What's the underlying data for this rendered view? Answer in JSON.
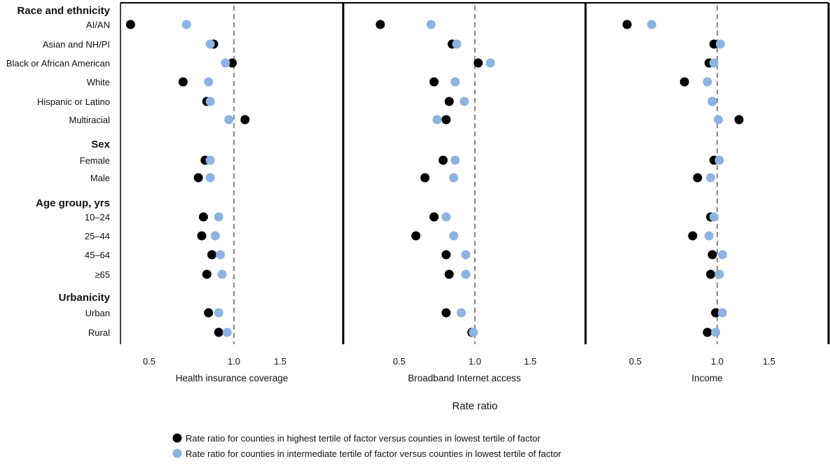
{
  "chart_data": {
    "type": "scatter",
    "xlabel": "Rate ratio",
    "reference_line": 1.0,
    "tick_labels": [
      "0.5",
      "1.0",
      "1.5"
    ],
    "ticks": [
      0.5,
      1.0,
      1.5
    ],
    "groups": [
      {
        "header": "Race and ethnicity",
        "rows": [
          "AI/AN",
          "Asian and NH/PI",
          "Black or African American",
          "White",
          "Hispanic or Latino",
          "Multiracial"
        ]
      },
      {
        "header": "Sex",
        "rows": [
          "Female",
          "Male"
        ]
      },
      {
        "header": "Age group, yrs",
        "rows": [
          "10‒24",
          "25‒44",
          "45‒64",
          "≥65"
        ]
      },
      {
        "header": "Urbanicity",
        "rows": [
          "Urban",
          "Rural"
        ]
      }
    ],
    "legend": [
      {
        "name": "Rate ratio for counties in highest tertile of factor versus counties in lowest tertile of factor",
        "color": "#000000"
      },
      {
        "name": "Rate ratio for counties in intermediate tertile of factor versus counties in lowest tertile of factor",
        "color": "#8db3e2"
      }
    ],
    "panels": [
      {
        "title": "Health insurance coverage",
        "highest": [
          0.39,
          0.88,
          0.99,
          0.7,
          0.84,
          1.12,
          0.83,
          0.79,
          0.82,
          0.81,
          0.87,
          0.84,
          0.85,
          0.91
        ],
        "intermediate": [
          0.72,
          0.86,
          0.95,
          0.85,
          0.86,
          0.97,
          0.86,
          0.86,
          0.91,
          0.89,
          0.92,
          0.93,
          0.91,
          0.96
        ]
      },
      {
        "title": "Broadband Internet access",
        "highest": [
          0.375,
          0.85,
          1.03,
          0.73,
          0.83,
          0.81,
          0.79,
          0.67,
          0.73,
          0.61,
          0.81,
          0.83,
          0.81,
          0.98
        ],
        "intermediate": [
          0.71,
          0.88,
          1.14,
          0.87,
          0.93,
          0.75,
          0.87,
          0.86,
          0.81,
          0.86,
          0.94,
          0.94,
          0.91,
          0.99
        ]
      },
      {
        "title": "Income",
        "highest": [
          0.45,
          0.98,
          0.95,
          0.8,
          0.97,
          1.21,
          0.98,
          0.88,
          0.96,
          0.85,
          0.97,
          0.96,
          0.99,
          0.94
        ],
        "intermediate": [
          0.6,
          1.03,
          0.98,
          0.94,
          0.97,
          1.01,
          1.02,
          0.96,
          0.98,
          0.95,
          1.05,
          1.02,
          1.05,
          0.99
        ]
      }
    ]
  }
}
